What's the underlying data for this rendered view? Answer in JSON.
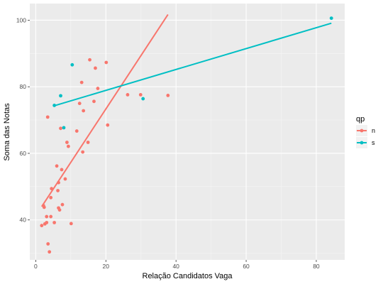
{
  "chart_data": {
    "type": "scatter",
    "xlabel": "Relação Candidatos Vaga",
    "ylabel": "Soma das Notas",
    "xlim": [
      -1.7,
      88.1
    ],
    "ylim": [
      28,
      105
    ],
    "x_ticks": [
      0,
      20,
      40,
      60,
      80
    ],
    "y_ticks": [
      40,
      60,
      80,
      100
    ],
    "x_tick_labels": [
      "0",
      "20",
      "40",
      "60",
      "80"
    ],
    "y_tick_labels": [
      "40",
      "60",
      "80",
      "100"
    ],
    "grid": true,
    "background": "#ebebeb",
    "legend": {
      "title": "qp",
      "placement": "right",
      "entries": [
        {
          "label": "n",
          "color": "#f8766d"
        },
        {
          "label": "s",
          "color": "#00bfc4"
        }
      ]
    },
    "series": [
      {
        "name": "n",
        "color": "#f8766d",
        "points": [
          [
            1.7,
            38.3
          ],
          [
            2.2,
            44.3
          ],
          [
            2.4,
            43.8
          ],
          [
            2.6,
            38.8
          ],
          [
            3.1,
            41.0
          ],
          [
            3.1,
            39.2
          ],
          [
            3.4,
            70.9
          ],
          [
            3.5,
            32.8
          ],
          [
            3.9,
            30.4
          ],
          [
            4.3,
            41.0
          ],
          [
            4.3,
            46.7
          ],
          [
            4.5,
            49.4
          ],
          [
            5.3,
            39.2
          ],
          [
            6.0,
            56.2
          ],
          [
            6.3,
            48.8
          ],
          [
            6.5,
            51.2
          ],
          [
            6.5,
            43.6
          ],
          [
            6.8,
            43.0
          ],
          [
            7.1,
            67.5
          ],
          [
            7.4,
            55.1
          ],
          [
            7.6,
            44.6
          ],
          [
            8.4,
            52.3
          ],
          [
            8.9,
            63.3
          ],
          [
            9.3,
            62.1
          ],
          [
            10.1,
            38.9
          ],
          [
            11.7,
            66.7
          ],
          [
            12.5,
            75.0
          ],
          [
            13.1,
            81.3
          ],
          [
            13.4,
            60.4
          ],
          [
            13.6,
            72.8
          ],
          [
            14.9,
            63.3
          ],
          [
            15.4,
            88.1
          ],
          [
            16.6,
            75.6
          ],
          [
            17.0,
            85.6
          ],
          [
            17.7,
            79.5
          ],
          [
            20.1,
            87.3
          ],
          [
            20.5,
            68.5
          ],
          [
            26.2,
            77.6
          ],
          [
            29.9,
            77.6
          ],
          [
            37.7,
            77.4
          ]
        ],
        "fit": {
          "x": [
            1.7,
            37.7
          ],
          "y": [
            44.0,
            101.7
          ]
        }
      },
      {
        "name": "s",
        "color": "#00bfc4",
        "points": [
          [
            5.3,
            74.4
          ],
          [
            7.1,
            77.3
          ],
          [
            8.0,
            67.7
          ],
          [
            10.4,
            86.6
          ],
          [
            30.6,
            76.4
          ],
          [
            84.3,
            100.6
          ]
        ],
        "fit": {
          "x": [
            5.3,
            84.3
          ],
          "y": [
            74.3,
            99.1
          ]
        }
      }
    ]
  }
}
